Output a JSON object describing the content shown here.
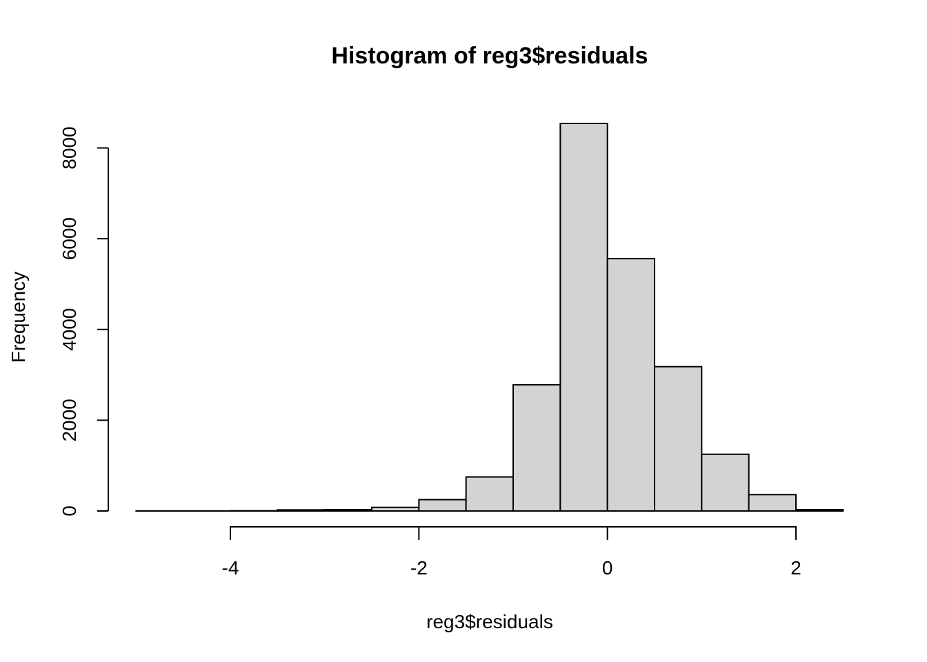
{
  "chart_data": {
    "type": "bar",
    "title": "Histogram of reg3$residuals",
    "xlabel": "reg3$residuals",
    "ylabel": "Frequency",
    "bin_edges": [
      -5.0,
      -4.5,
      -4.0,
      -3.5,
      -3.0,
      -2.5,
      -2.0,
      -1.5,
      -1.0,
      -0.5,
      0.0,
      0.5,
      1.0,
      1.5,
      2.0,
      2.5
    ],
    "values": [
      1,
      2,
      5,
      25,
      30,
      80,
      250,
      750,
      2780,
      8540,
      5560,
      3180,
      1250,
      360,
      30
    ],
    "x_ticks": [
      -4,
      -2,
      0,
      2
    ],
    "y_ticks": [
      0,
      2000,
      4000,
      6000,
      8000
    ],
    "xlim": [
      -5.0,
      2.5
    ],
    "ylim": [
      0,
      8540
    ],
    "grid": false
  }
}
